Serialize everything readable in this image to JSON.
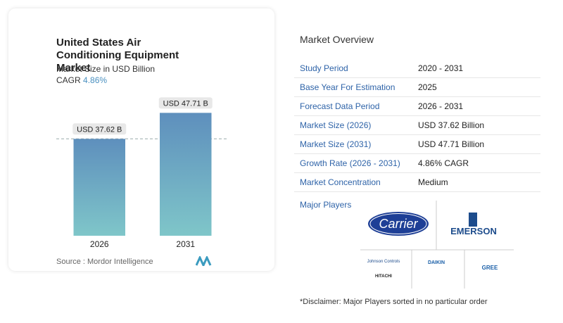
{
  "chart_data": {
    "type": "bar",
    "title": "United States Air Conditioning Equipment Market",
    "subtitle": "Market Size in USD Billion",
    "cagr_label": "CAGR",
    "cagr": "4.86%",
    "categories": [
      "2026",
      "2031"
    ],
    "values": [
      37.62,
      47.71
    ],
    "value_labels": [
      "USD 37.62 B",
      "USD 47.71 B"
    ],
    "color": "#6a9fc2",
    "ylim": [
      0,
      50
    ],
    "source": "Source : Mordor Intelligence"
  },
  "overview": {
    "title": "Market Overview",
    "rows": [
      [
        "Study Period",
        "2020 - 2031"
      ],
      [
        "Base Year For Estimation",
        "2025"
      ],
      [
        "Forecast Data Period",
        "2026 - 2031"
      ],
      [
        "Market Size (2026)",
        "USD 37.62 Billion"
      ],
      [
        "Market Size (2031)",
        "USD 47.71 Billion"
      ],
      [
        "Growth Rate (2026 - 2031)",
        "4.86% CAGR"
      ],
      [
        "Market Concentration",
        "Medium"
      ]
    ]
  },
  "players": {
    "title": "Major Players",
    "names": [
      "Carrier",
      "EMERSON",
      "Johnson Controls",
      "HITACHI",
      "DAIKIN",
      "GREE"
    ]
  },
  "disclaimer": "*Disclaimer: Major Players sorted in no particular order"
}
